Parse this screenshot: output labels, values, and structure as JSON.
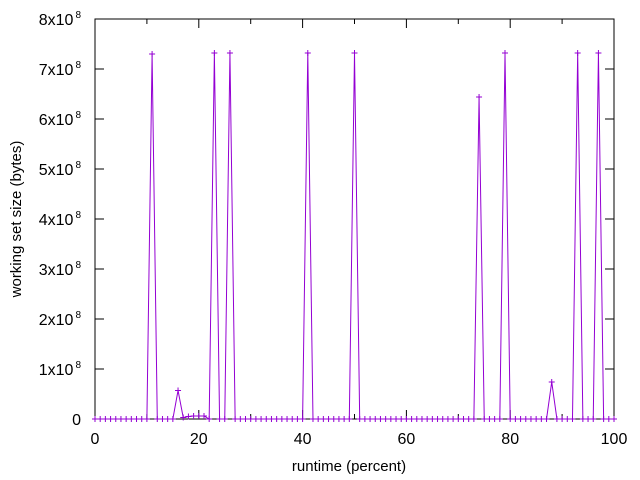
{
  "chart_data": {
    "type": "line",
    "xlabel": "runtime (percent)",
    "ylabel": "working set size (bytes)",
    "xlim": [
      0,
      100
    ],
    "ylim": [
      0,
      800000000
    ],
    "x_ticks": [
      {
        "value": 0,
        "label": "0"
      },
      {
        "value": 20,
        "label": "20"
      },
      {
        "value": 40,
        "label": "40"
      },
      {
        "value": 60,
        "label": "60"
      },
      {
        "value": 80,
        "label": "80"
      },
      {
        "value": 100,
        "label": "100"
      }
    ],
    "y_ticks": [
      {
        "value": 0,
        "mant": "0",
        "exp": ""
      },
      {
        "value": 100000000,
        "mant": "1x10",
        "exp": "8"
      },
      {
        "value": 200000000,
        "mant": "2x10",
        "exp": "8"
      },
      {
        "value": 300000000,
        "mant": "3x10",
        "exp": "8"
      },
      {
        "value": 400000000,
        "mant": "4x10",
        "exp": "8"
      },
      {
        "value": 500000000,
        "mant": "5x10",
        "exp": "8"
      },
      {
        "value": 600000000,
        "mant": "6x10",
        "exp": "8"
      },
      {
        "value": 700000000,
        "mant": "7x10",
        "exp": "8"
      },
      {
        "value": 800000000,
        "mant": "8x10",
        "exp": "8"
      }
    ],
    "grid": false,
    "legend": "none",
    "series": [
      {
        "color": "#9400d3",
        "marker": "plus",
        "x": [
          0,
          1,
          2,
          3,
          4,
          5,
          6,
          7,
          8,
          9,
          10,
          11,
          12,
          13,
          14,
          15,
          16,
          17,
          18,
          19,
          20,
          21,
          22,
          23,
          24,
          25,
          26,
          27,
          28,
          29,
          30,
          31,
          32,
          33,
          34,
          35,
          36,
          37,
          38,
          39,
          40,
          41,
          42,
          43,
          44,
          45,
          46,
          47,
          48,
          49,
          50,
          51,
          52,
          53,
          54,
          55,
          56,
          57,
          58,
          59,
          60,
          61,
          62,
          63,
          64,
          65,
          66,
          67,
          68,
          69,
          70,
          71,
          72,
          73,
          74,
          75,
          76,
          77,
          78,
          79,
          80,
          81,
          82,
          83,
          84,
          85,
          86,
          87,
          88,
          89,
          90,
          91,
          92,
          93,
          94,
          95,
          96,
          97,
          98,
          99,
          100
        ],
        "values": [
          0,
          0,
          0,
          0,
          0,
          0,
          0,
          0,
          0,
          0,
          0,
          730000000,
          0,
          0,
          0,
          0,
          57000000,
          3000000,
          5000000,
          6000000,
          6000000,
          6000000,
          0,
          732000000,
          0,
          0,
          732000000,
          0,
          0,
          0,
          0,
          0,
          0,
          0,
          0,
          0,
          0,
          0,
          0,
          0,
          0,
          732000000,
          0,
          0,
          0,
          0,
          0,
          0,
          0,
          0,
          732000000,
          0,
          0,
          0,
          0,
          0,
          0,
          0,
          0,
          0,
          0,
          0,
          0,
          0,
          0,
          0,
          0,
          0,
          0,
          0,
          0,
          0,
          0,
          0,
          644000000,
          0,
          0,
          0,
          0,
          732000000,
          0,
          0,
          0,
          0,
          0,
          0,
          0,
          0,
          74000000,
          0,
          0,
          0,
          0,
          732000000,
          0,
          0,
          0,
          732000000,
          0,
          0,
          0
        ]
      }
    ]
  }
}
